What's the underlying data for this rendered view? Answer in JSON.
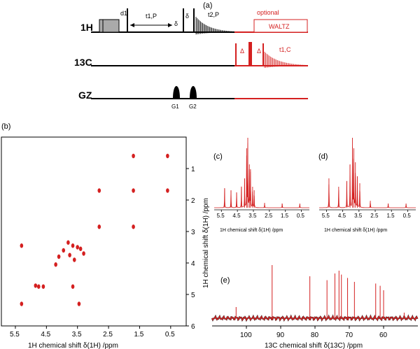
{
  "panels": {
    "a": "(a)",
    "b": "(b)",
    "c": "(c)",
    "d": "(d)",
    "e": "(e)"
  },
  "pulse_sequence": {
    "channel_h": "1H",
    "channel_c": "13C",
    "channel_g": "GZ",
    "label_d1": "d1",
    "label_t1p": "t1,P",
    "label_delta_small": "δ",
    "label_t2p": "t2,P",
    "label_optional": "optional",
    "label_waltz": "WALTZ",
    "label_big_delta": "Δ",
    "label_t1c": "t1,C",
    "gradient_1": "G1",
    "gradient_2": "G2"
  },
  "chart_data": [
    {
      "id": "b",
      "type": "scatter",
      "title": "",
      "xlabel": "1H chemical shift δ(1H) /ppm",
      "ylabel": "1H chemical shift δ(1H) /ppm",
      "xlim": [
        5.95,
        0.0
      ],
      "ylim": [
        0.0,
        6.0
      ],
      "xticks": [
        "5.5",
        "4.5",
        "3.5",
        "2.5",
        "1.5",
        "0.5"
      ],
      "yticks": [
        "1",
        "2",
        "3",
        "4",
        "5",
        "6"
      ],
      "peaks": [
        {
          "x": 1.7,
          "y": 0.6
        },
        {
          "x": 0.6,
          "y": 0.6
        },
        {
          "x": 2.8,
          "y": 1.7
        },
        {
          "x": 1.7,
          "y": 1.7
        },
        {
          "x": 0.6,
          "y": 1.7
        },
        {
          "x": 2.8,
          "y": 2.85
        },
        {
          "x": 1.7,
          "y": 2.85
        },
        {
          "x": 5.3,
          "y": 3.45
        },
        {
          "x": 3.8,
          "y": 3.35
        },
        {
          "x": 3.65,
          "y": 3.45
        },
        {
          "x": 3.4,
          "y": 3.55
        },
        {
          "x": 3.95,
          "y": 3.6
        },
        {
          "x": 3.75,
          "y": 3.75
        },
        {
          "x": 4.1,
          "y": 3.8
        },
        {
          "x": 3.6,
          "y": 3.9
        },
        {
          "x": 4.2,
          "y": 4.05
        },
        {
          "x": 3.3,
          "y": 3.7
        },
        {
          "x": 3.5,
          "y": 3.5
        },
        {
          "x": 4.75,
          "y": 4.75
        },
        {
          "x": 4.6,
          "y": 4.75
        },
        {
          "x": 3.65,
          "y": 4.75
        },
        {
          "x": 4.85,
          "y": 4.72
        },
        {
          "x": 5.3,
          "y": 5.3
        },
        {
          "x": 3.45,
          "y": 5.3
        }
      ]
    },
    {
      "id": "c",
      "type": "line",
      "xlabel": "1H chemical shift δ(1H) /ppm",
      "xlim": [
        5.95,
        0.0
      ],
      "xticks": [
        "5.5",
        "4.5",
        "3.5",
        "2.5",
        "1.5",
        "0.5"
      ],
      "peaks": [
        {
          "x": 5.3,
          "h": 0.28
        },
        {
          "x": 4.9,
          "h": 0.25
        },
        {
          "x": 4.55,
          "h": 0.22
        },
        {
          "x": 4.25,
          "h": 0.3
        },
        {
          "x": 4.05,
          "h": 0.42
        },
        {
          "x": 3.92,
          "h": 0.85
        },
        {
          "x": 3.85,
          "h": 1.0
        },
        {
          "x": 3.75,
          "h": 0.62
        },
        {
          "x": 3.68,
          "h": 0.55
        },
        {
          "x": 3.55,
          "h": 0.3
        },
        {
          "x": 3.45,
          "h": 0.25
        },
        {
          "x": 2.8,
          "h": 0.07
        },
        {
          "x": 1.7,
          "h": 0.06
        },
        {
          "x": 0.6,
          "h": 0.06
        }
      ]
    },
    {
      "id": "d",
      "type": "line",
      "xlabel": "1H chemical shift δ(1H) /ppm",
      "xlim": [
        5.95,
        0.0
      ],
      "xticks": [
        "5.5",
        "4.5",
        "3.5",
        "2.5",
        "1.5",
        "0.5"
      ],
      "peaks": [
        {
          "x": 5.35,
          "h": 0.42
        },
        {
          "x": 4.75,
          "h": 0.3
        },
        {
          "x": 4.25,
          "h": 0.38
        },
        {
          "x": 4.05,
          "h": 0.62
        },
        {
          "x": 3.9,
          "h": 1.0
        },
        {
          "x": 3.82,
          "h": 0.85
        },
        {
          "x": 3.72,
          "h": 0.65
        },
        {
          "x": 3.6,
          "h": 0.45
        },
        {
          "x": 3.45,
          "h": 0.35
        },
        {
          "x": 2.8,
          "h": 0.1
        },
        {
          "x": 1.7,
          "h": 0.06
        },
        {
          "x": 0.6,
          "h": 0.06
        }
      ]
    },
    {
      "id": "e",
      "type": "line",
      "xlabel": "13C chemical shift δ(13C) /ppm",
      "ylabel": "1H chemical shift δ(1H) /ppm",
      "xlim": [
        110,
        50
      ],
      "xticks": [
        "100",
        "90",
        "80",
        "70",
        "60"
      ],
      "peaks": [
        {
          "x": 103.0,
          "h": 0.2
        },
        {
          "x": 92.5,
          "h": 0.95
        },
        {
          "x": 81.5,
          "h": 0.75
        },
        {
          "x": 76.5,
          "h": 0.68
        },
        {
          "x": 74.2,
          "h": 0.8
        },
        {
          "x": 73.0,
          "h": 0.85
        },
        {
          "x": 72.3,
          "h": 0.78
        },
        {
          "x": 70.5,
          "h": 0.72
        },
        {
          "x": 68.5,
          "h": 0.65
        },
        {
          "x": 62.3,
          "h": 0.62
        },
        {
          "x": 61.0,
          "h": 0.58
        },
        {
          "x": 60.0,
          "h": 0.5
        },
        {
          "x": 54.0,
          "h": 0.1
        }
      ]
    }
  ],
  "colors": {
    "red": "#d42020",
    "black": "#000000",
    "gray": "#aaaaaa"
  }
}
